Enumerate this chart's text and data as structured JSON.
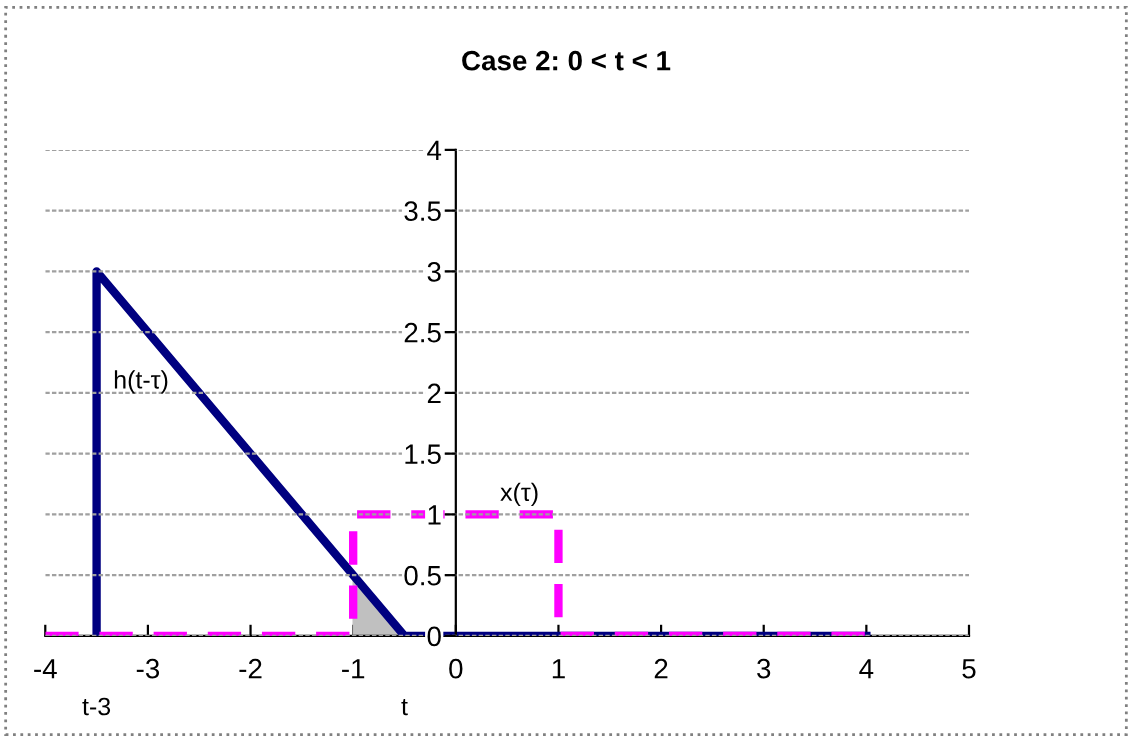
{
  "chart_data": {
    "type": "line",
    "title": "Case 2: 0 < t < 1",
    "series": [
      {
        "type": "area",
        "color": "#c0c0c0",
        "x": [
          -1,
          -0.5
        ],
        "values": [
          0.5,
          0
        ]
      },
      {
        "name": "h(t-τ)",
        "color": "#000080",
        "x": [
          -3.5,
          -3.5,
          -0.5,
          4
        ],
        "values": [
          0,
          3,
          0,
          0
        ],
        "line_style": "solid"
      },
      {
        "name": "x(τ)",
        "color": "#ff00ff",
        "x": [
          -4,
          -1,
          -1,
          1,
          1,
          4
        ],
        "values": [
          0,
          0,
          1,
          1,
          0,
          0
        ],
        "line_style": "dashed"
      }
    ],
    "annotations": [
      {
        "text": "t-3",
        "x": -3.5,
        "y": 0
      },
      {
        "text": "t",
        "x": -0.5,
        "y": 0
      }
    ],
    "xlim": [
      -4,
      5
    ],
    "xticks": [
      -4,
      -3,
      -2,
      -1,
      0,
      1,
      2,
      3,
      4,
      5
    ],
    "ylim": [
      0,
      4
    ],
    "yticks": [
      0,
      0.5,
      1,
      1.5,
      2,
      2.5,
      3,
      3.5,
      4
    ],
    "grid": "y",
    "marker": "none"
  }
}
